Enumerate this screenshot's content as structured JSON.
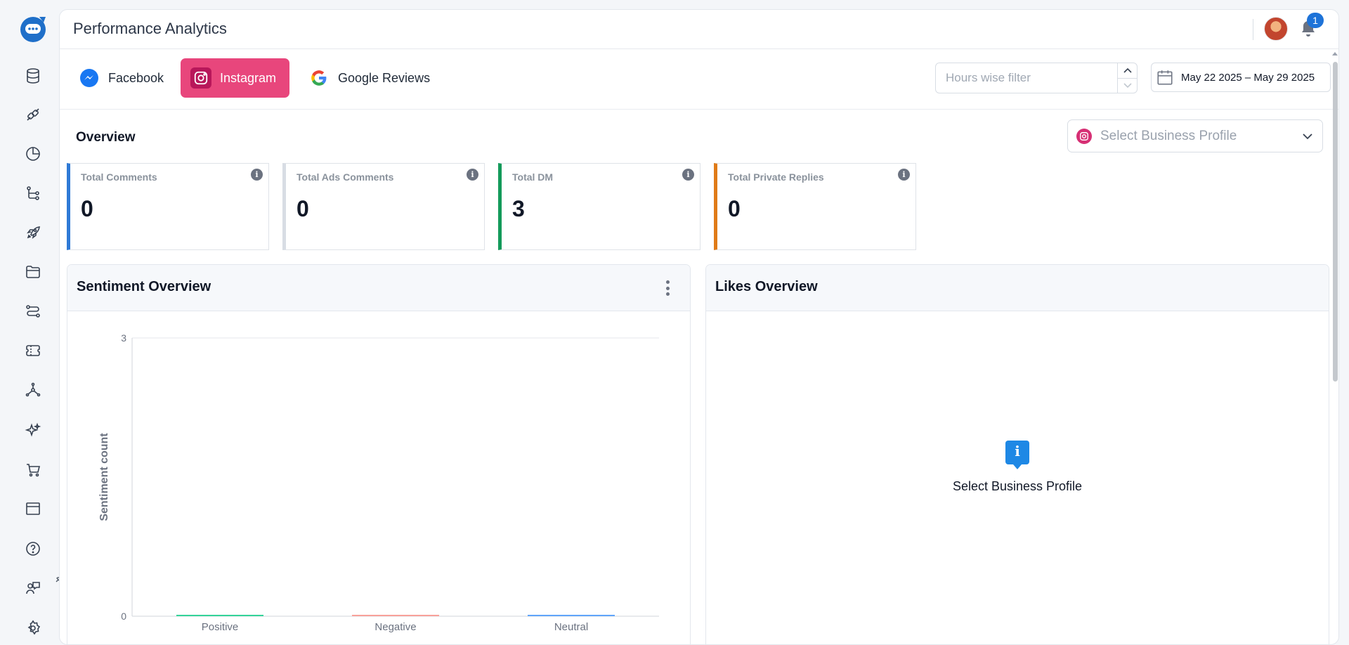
{
  "header": {
    "title": "Performance Analytics",
    "notification_count": "1"
  },
  "sidebar": {
    "items": [
      {
        "icon": "database-icon"
      },
      {
        "icon": "integration-icon"
      },
      {
        "icon": "pie-chart-icon"
      },
      {
        "icon": "workflow-icon"
      },
      {
        "icon": "rocket-icon"
      },
      {
        "icon": "folder-icon"
      },
      {
        "icon": "routes-icon"
      },
      {
        "icon": "ticket-icon"
      },
      {
        "icon": "network-icon"
      },
      {
        "icon": "sparkles-icon"
      },
      {
        "icon": "cart-icon"
      },
      {
        "icon": "browser-window-icon"
      },
      {
        "icon": "help-icon"
      },
      {
        "icon": "agent-chat-icon"
      },
      {
        "icon": "settings-icon"
      }
    ]
  },
  "channels": {
    "tabs": [
      {
        "label": "Facebook",
        "icon": "facebook-messenger-icon"
      },
      {
        "label": "Instagram",
        "icon": "instagram-icon",
        "active": true
      },
      {
        "label": "Google Reviews",
        "icon": "google-icon"
      }
    ],
    "hours_filter_placeholder": "Hours wise filter",
    "date_range": "May 22 2025 – May 29 2025"
  },
  "overview": {
    "title": "Overview",
    "profile_placeholder": "Select Business Profile",
    "cards": [
      {
        "label": "Total Comments",
        "value": "0",
        "accent": "#2f7ad6"
      },
      {
        "label": "Total Ads Comments",
        "value": "0",
        "accent": "#d8dde4"
      },
      {
        "label": "Total DM",
        "value": "3",
        "accent": "#139a5a"
      },
      {
        "label": "Total Private Replies",
        "value": "0",
        "accent": "#e07b17"
      }
    ]
  },
  "sentiment": {
    "title": "Sentiment Overview",
    "chart_data": {
      "type": "bar",
      "categories": [
        "Positive",
        "Negative",
        "Neutral"
      ],
      "values": [
        0,
        0,
        0
      ],
      "colors": [
        "#34d399",
        "#f8a19a",
        "#60a5fa"
      ],
      "ylabel": "Sentiment count",
      "ylim": [
        0,
        3
      ],
      "yticks": [
        "0",
        "3"
      ]
    }
  },
  "likes": {
    "title": "Likes Overview",
    "empty_message": "Select Business Profile"
  }
}
